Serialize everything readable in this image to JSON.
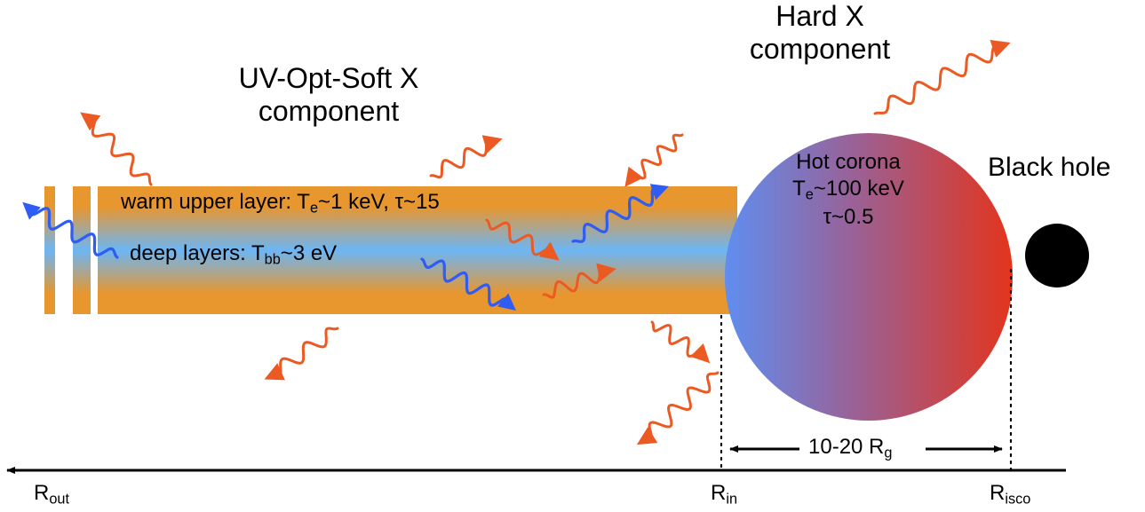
{
  "components": {
    "uv_line1": "UV-Opt-Soft X",
    "uv_line2": "component",
    "hard_line1": "Hard X",
    "hard_line2": "component"
  },
  "disk": {
    "warm_prefix": "warm upper layer: T",
    "warm_sub": "e",
    "warm_suffix": "~1 keV, τ~15",
    "deep_prefix": "deep layers: T",
    "deep_sub": "bb",
    "deep_suffix": "~3 eV"
  },
  "corona": {
    "line1": "Hot corona",
    "t_prefix": "T",
    "t_sub": "e",
    "t_suffix": "~100 keV",
    "tau": "τ~0.5"
  },
  "black_hole": {
    "label": "Black hole"
  },
  "axis": {
    "r_out_main": "R",
    "r_out_sub": "out",
    "r_in_main": "R",
    "r_in_sub": "in",
    "r_isco_main": "R",
    "r_isco_sub": "isco",
    "span_prefix": "10-20 R",
    "span_sub": "g"
  },
  "colors": {
    "disk_orange": "#e8962e",
    "disk_blue": "#6cb6f5",
    "photon_orange": "#ec5a23",
    "photon_blue": "#2f5cf2",
    "corona_blue": "#5f8ef0",
    "corona_red": "#e3341c",
    "black_hole": "#000000"
  }
}
